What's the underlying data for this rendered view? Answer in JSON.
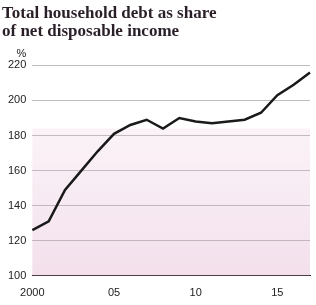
{
  "chart_data": {
    "type": "line",
    "title": "Total household debt as share of net disposable income",
    "y_label": "%",
    "categories": [
      "2000",
      null,
      null,
      null,
      null,
      "05",
      null,
      null,
      null,
      null,
      "10",
      null,
      null,
      null,
      null,
      "15",
      null,
      null
    ],
    "values": [
      126,
      131,
      149,
      160,
      171,
      181,
      186,
      189,
      184,
      190,
      188,
      187,
      188,
      189,
      193,
      203,
      209,
      216
    ],
    "color": "#1a1a1a",
    "ylim": [
      100,
      220
    ],
    "yticks": [
      100,
      120,
      140,
      160,
      180,
      200,
      220
    ],
    "grid": true
  }
}
